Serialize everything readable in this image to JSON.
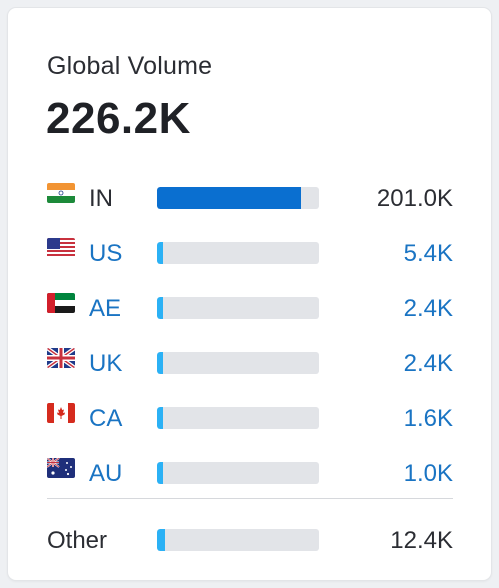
{
  "widget": {
    "title": "Global Volume",
    "total": "226.2K"
  },
  "colors": {
    "primary_bar": "#0a6fd0",
    "secondary_bar": "#2bb1f5",
    "track": "#e2e4e8",
    "link_text": "#1a74c3"
  },
  "countries": [
    {
      "code": "IN",
      "flag_icon": "india-flag-icon",
      "value": "201.0K",
      "share": 0.89,
      "linked": false
    },
    {
      "code": "US",
      "flag_icon": "usa-flag-icon",
      "value": "5.4K",
      "share": 0.04,
      "linked": true
    },
    {
      "code": "AE",
      "flag_icon": "uae-flag-icon",
      "value": "2.4K",
      "share": 0.04,
      "linked": true
    },
    {
      "code": "UK",
      "flag_icon": "uk-flag-icon",
      "value": "2.4K",
      "share": 0.04,
      "linked": true
    },
    {
      "code": "CA",
      "flag_icon": "canada-flag-icon",
      "value": "1.6K",
      "share": 0.04,
      "linked": true
    },
    {
      "code": "AU",
      "flag_icon": "australia-flag-icon",
      "value": "1.0K",
      "share": 0.04,
      "linked": true
    }
  ],
  "other": {
    "label": "Other",
    "value": "12.4K",
    "share": 0.05
  }
}
